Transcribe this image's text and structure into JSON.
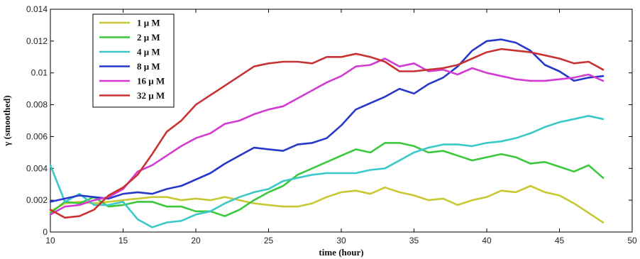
{
  "chart_data": {
    "type": "line",
    "xlabel": "time (hour)",
    "ylabel": "γ (smoothed)",
    "xlim": [
      10,
      50
    ],
    "ylim": [
      0,
      0.014
    ],
    "x_ticks": [
      10,
      15,
      20,
      25,
      30,
      35,
      40,
      45,
      50
    ],
    "y_ticks": [
      0,
      0.002,
      0.004,
      0.006,
      0.008,
      0.01,
      0.012,
      0.014
    ],
    "y_tick_labels": [
      "0",
      "0.002",
      "0.004",
      "0.006",
      "0.008",
      "0.01",
      "0.012",
      "0.014"
    ],
    "legend_position": "top-left",
    "grid": false,
    "x": [
      10,
      11,
      12,
      13,
      14,
      15,
      16,
      17,
      18,
      19,
      20,
      21,
      22,
      23,
      24,
      25,
      26,
      27,
      28,
      29,
      30,
      31,
      32,
      33,
      34,
      35,
      36,
      37,
      38,
      39,
      40,
      41,
      42,
      43,
      44,
      45,
      46,
      47,
      48
    ],
    "series": [
      {
        "name": "1 μ M",
        "color": "#c8c832",
        "values": [
          0.0013,
          0.0018,
          0.0019,
          0.0018,
          0.0019,
          0.002,
          0.0021,
          0.0022,
          0.0022,
          0.002,
          0.0021,
          0.002,
          0.0022,
          0.002,
          0.0018,
          0.0017,
          0.0016,
          0.0016,
          0.0018,
          0.0022,
          0.0025,
          0.0026,
          0.0024,
          0.0028,
          0.0025,
          0.0023,
          0.002,
          0.0021,
          0.0017,
          0.002,
          0.0022,
          0.0026,
          0.0025,
          0.0029,
          0.0025,
          0.0023,
          0.0018,
          0.0012,
          0.0006
        ]
      },
      {
        "name": "2 μ M",
        "color": "#3cc83c",
        "values": [
          0.0012,
          0.0019,
          0.0018,
          0.0022,
          0.0016,
          0.0017,
          0.0019,
          0.0019,
          0.0016,
          0.0016,
          0.0013,
          0.0013,
          0.001,
          0.0014,
          0.002,
          0.0025,
          0.0029,
          0.0036,
          0.004,
          0.0044,
          0.0048,
          0.0052,
          0.005,
          0.0056,
          0.0056,
          0.0054,
          0.005,
          0.0051,
          0.0048,
          0.0045,
          0.0047,
          0.0049,
          0.0047,
          0.0043,
          0.0044,
          0.0041,
          0.0038,
          0.0042,
          0.0034
        ]
      },
      {
        "name": "4 μ M",
        "color": "#3cc8c8",
        "values": [
          0.0042,
          0.0019,
          0.0024,
          0.0017,
          0.0017,
          0.0019,
          0.0008,
          0.0003,
          0.0006,
          0.0007,
          0.0011,
          0.0013,
          0.0018,
          0.0022,
          0.0025,
          0.0027,
          0.0032,
          0.0034,
          0.0036,
          0.0037,
          0.0037,
          0.0037,
          0.0039,
          0.004,
          0.0045,
          0.005,
          0.0053,
          0.0055,
          0.0055,
          0.0054,
          0.0056,
          0.0057,
          0.0059,
          0.0062,
          0.0066,
          0.0069,
          0.0071,
          0.0073,
          0.0071
        ]
      },
      {
        "name": "8 μ M",
        "color": "#2838c8",
        "values": [
          0.0019,
          0.0021,
          0.0023,
          0.0022,
          0.0021,
          0.0024,
          0.0025,
          0.0024,
          0.0027,
          0.0029,
          0.0033,
          0.0037,
          0.0043,
          0.0048,
          0.0053,
          0.0052,
          0.0051,
          0.0055,
          0.0056,
          0.0059,
          0.0067,
          0.0077,
          0.0081,
          0.0085,
          0.009,
          0.0087,
          0.0093,
          0.0097,
          0.0104,
          0.0114,
          0.012,
          0.0121,
          0.0119,
          0.0114,
          0.0105,
          0.0101,
          0.0095,
          0.0097,
          0.0098
        ]
      },
      {
        "name": "16 μ M",
        "color": "#d23cd2",
        "values": [
          0.0011,
          0.0016,
          0.0017,
          0.002,
          0.0022,
          0.0027,
          0.0038,
          0.0042,
          0.0048,
          0.0054,
          0.0059,
          0.0062,
          0.0068,
          0.007,
          0.0074,
          0.0077,
          0.0079,
          0.0084,
          0.0089,
          0.0094,
          0.0098,
          0.0104,
          0.0105,
          0.0109,
          0.0104,
          0.0106,
          0.0101,
          0.0102,
          0.0099,
          0.0103,
          0.01,
          0.0098,
          0.0096,
          0.0095,
          0.0095,
          0.0096,
          0.0097,
          0.0099,
          0.0095
        ]
      },
      {
        "name": "32 μ M",
        "color": "#c83232",
        "values": [
          0.0014,
          0.0009,
          0.001,
          0.0014,
          0.0023,
          0.0028,
          0.0036,
          0.0049,
          0.0063,
          0.007,
          0.008,
          0.0086,
          0.0092,
          0.0098,
          0.0104,
          0.0106,
          0.0107,
          0.0107,
          0.0106,
          0.011,
          0.011,
          0.0112,
          0.011,
          0.0107,
          0.0101,
          0.0101,
          0.0102,
          0.0103,
          0.0105,
          0.0109,
          0.0113,
          0.0115,
          0.0114,
          0.0113,
          0.0111,
          0.0109,
          0.0106,
          0.0107,
          0.0102
        ]
      }
    ]
  }
}
